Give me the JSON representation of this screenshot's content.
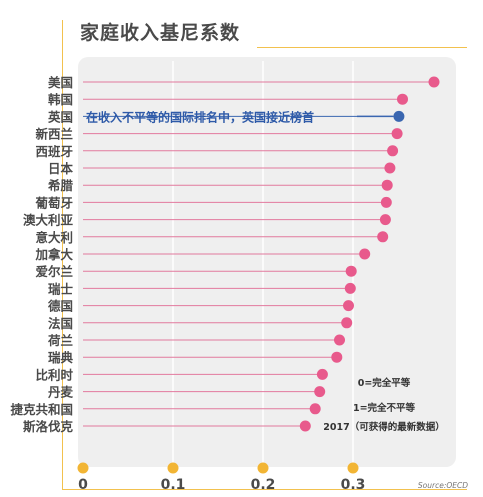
{
  "chart_data": {
    "type": "scatter",
    "title": "家庭收入基尼系数",
    "categories": [
      "美国",
      "韩国",
      "英国",
      "新西兰",
      "西班牙",
      "日本",
      "希腊",
      "葡萄牙",
      "澳大利亚",
      "意大利",
      "加拿大",
      "爱尔兰",
      "瑞士",
      "德国",
      "法国",
      "荷兰",
      "瑞典",
      "比利时",
      "丹麦",
      "捷克共和国",
      "斯洛伐克"
    ],
    "values": [
      0.39,
      0.355,
      0.351,
      0.349,
      0.344,
      0.341,
      0.338,
      0.337,
      0.336,
      0.333,
      0.313,
      0.298,
      0.297,
      0.295,
      0.293,
      0.285,
      0.282,
      0.266,
      0.263,
      0.258,
      0.247
    ],
    "highlight_index": 2,
    "x_ticks": [
      "0",
      "0.1",
      "0.2",
      "0.3"
    ],
    "xlim": [
      0,
      0.4
    ],
    "annotation": "在收入不平等的国际排名中，英国接近榜首",
    "notes": [
      "0=完全平等",
      "1=完全不平等",
      "2017（可获得的最新数据）"
    ],
    "source": "Source:OECD",
    "colors": {
      "point": "#e85a8c",
      "highlight": "#3a66b0",
      "stem": "#e27a9e",
      "panel": "#efefef",
      "tick_dot": "#f2b534",
      "frame": "#f2c14e",
      "annotation": "#2e5aa8"
    },
    "grid": true
  }
}
